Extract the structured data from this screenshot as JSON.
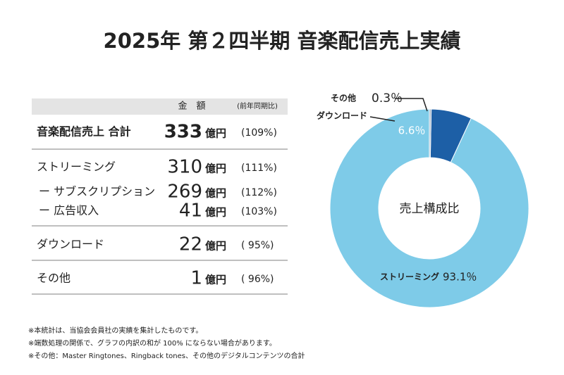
{
  "title": "2025年 第２四半期 音楽配信売上実績",
  "table": {
    "header": [
      "金　額",
      "(前年同期比)"
    ],
    "rows": [
      [
        "音楽配信売上 合計",
        333,
        "億円",
        "(109%)"
      ],
      [
        "ストリーミング",
        310,
        "億円",
        "(111%)"
      ],
      [
        "ー サブスクリプション",
        269,
        "億円",
        "(112%)"
      ],
      [
        "ー 広告収入",
        41,
        "億円",
        "(103%)"
      ],
      [
        "ダウンロード",
        22,
        "億円",
        "(  95%)"
      ],
      [
        "その他",
        1,
        "億円",
        "(  96%)"
      ]
    ]
  },
  "chart_data": {
    "type": "donut",
    "center_label": "売上構成比",
    "categories": [
      "ストリーミング",
      "ダウンロード",
      "その他"
    ],
    "values": [
      93.1,
      6.6,
      0.3
    ],
    "value_labels": [
      "93.1％",
      "6.6％",
      "0.3％"
    ],
    "colors": [
      "#7ecbe8",
      "#1d5fa6",
      "#9fb3c8"
    ]
  },
  "notes": [
    "※本統計は、当協会会員社の実績を集計したものです。",
    "※端数処理の関係で、グラフの内訳の和が 100% にならない場合があります。",
    "※その他：Master Ringtones、Ringback tones、その他のデジタルコンテンツの合計"
  ]
}
